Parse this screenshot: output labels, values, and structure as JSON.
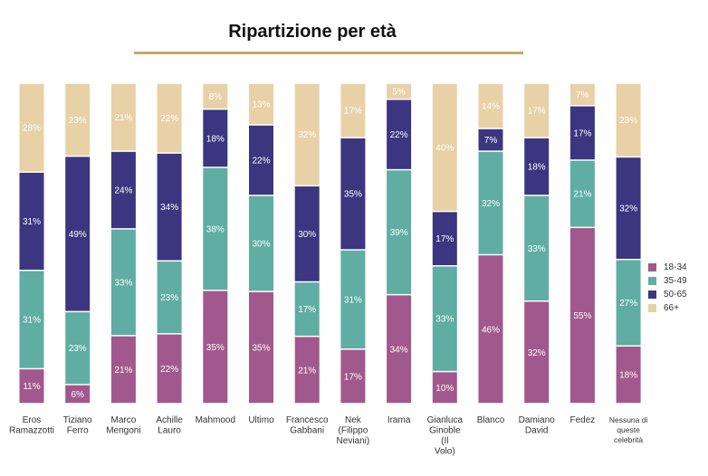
{
  "title": "Ripartizione per età",
  "chart_data": {
    "type": "bar",
    "stacked": true,
    "ylim": [
      0,
      100
    ],
    "categories": [
      [
        "Eros",
        "Ramazzotti"
      ],
      [
        "Tiziano",
        "Ferro"
      ],
      [
        "Marco",
        "Mengoni"
      ],
      [
        "Achille",
        "Lauro"
      ],
      [
        "Mahmood"
      ],
      [
        "Ultimo"
      ],
      [
        "Francesco",
        "Gabbani"
      ],
      [
        "Nek",
        "(Filippo",
        "Neviani)"
      ],
      [
        "Irama"
      ],
      [
        "Gianluca",
        "Ginoble",
        "(Il",
        "Volo)"
      ],
      [
        "Blanco"
      ],
      [
        "Damiano",
        "David"
      ],
      [
        "Fedez"
      ],
      [
        "Nessuna di",
        "queste",
        "celebrità"
      ]
    ],
    "series": [
      {
        "name": "18-34",
        "color": "#a1588d",
        "values": [
          11,
          6,
          21,
          22,
          35,
          35,
          21,
          17,
          34,
          10,
          46,
          32,
          55,
          18
        ],
        "labels": [
          "11%",
          "6%",
          "21%",
          "22%",
          "35%",
          "35%",
          "21%",
          "17%",
          "34%",
          "10%",
          "46%",
          "32%",
          "55%",
          "18%"
        ]
      },
      {
        "name": "35-49",
        "color": "#5fada3",
        "values": [
          31,
          23,
          33,
          23,
          38,
          30,
          17,
          31,
          39,
          33,
          32,
          33,
          21,
          27
        ],
        "labels": [
          "31%",
          "23%",
          "33%",
          "23%",
          "38%",
          "30%",
          "17%",
          "31%",
          "39%",
          "33%",
          "32%",
          "33%",
          "21%",
          "27%"
        ]
      },
      {
        "name": "50-65",
        "color": "#3b367f",
        "values": [
          31,
          49,
          24,
          34,
          18,
          22,
          30,
          35,
          22,
          17,
          7,
          18,
          17,
          32
        ],
        "labels": [
          "31%",
          "49%",
          "24%",
          "34%",
          "18%",
          "22%",
          "30%",
          "35%",
          "22%",
          "17%",
          "7%",
          "18%",
          "17%",
          "32%"
        ]
      },
      {
        "name": "66+",
        "color": "#e8d1a7",
        "values": [
          28,
          23,
          21,
          22,
          8,
          13,
          32,
          17,
          5,
          40,
          14,
          17,
          7,
          23
        ],
        "labels": [
          "28%",
          "23%",
          "21%",
          "22%",
          "8%",
          "13%",
          "32%",
          "17%",
          "5%",
          "40%",
          "14%",
          "17%",
          "7%",
          "23%"
        ]
      }
    ],
    "legend": {
      "position": "right"
    }
  }
}
